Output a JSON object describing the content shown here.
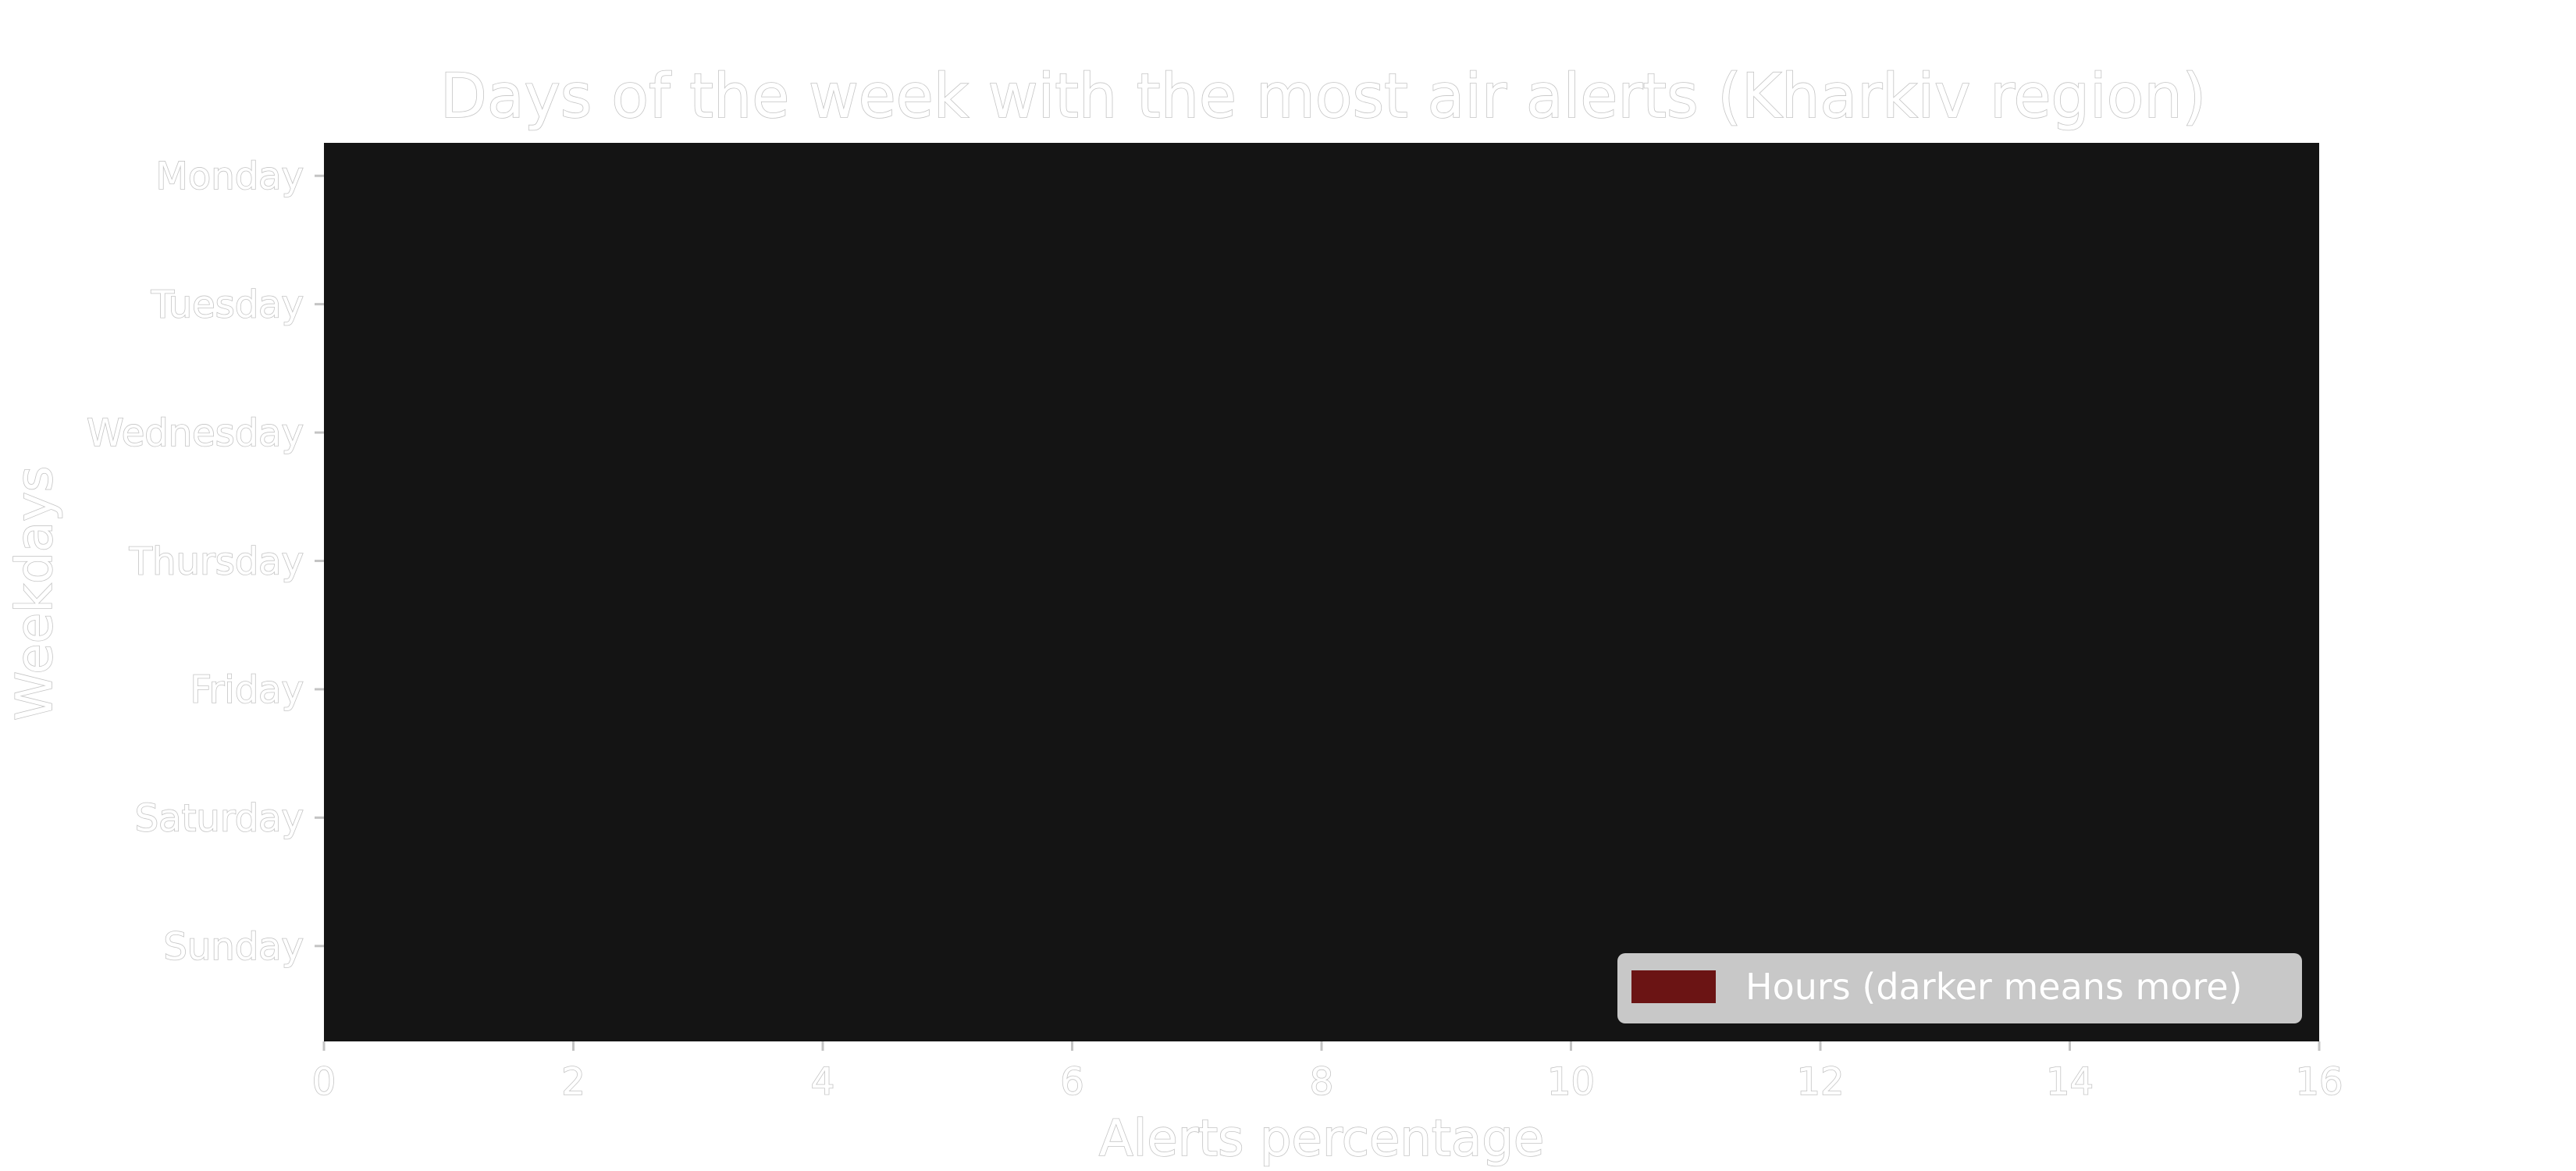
{
  "chart_data": {
    "type": "bar",
    "orientation": "horizontal",
    "title": "Days of the week with the most air alerts (Kharkiv region)",
    "xlabel": "Alerts percentage",
    "ylabel": "Weekdays",
    "categories": [
      "Monday",
      "Tuesday",
      "Wednesday",
      "Thursday",
      "Friday",
      "Saturday",
      "Sunday"
    ],
    "xlim": [
      0,
      16
    ],
    "x_ticks": [
      0,
      2,
      4,
      6,
      8,
      10,
      12,
      14,
      16
    ],
    "grid": false,
    "legend": {
      "position": "bottom-right",
      "entries": [
        {
          "label": "Hours (darker means more)",
          "color": "#6b1414"
        }
      ]
    },
    "colors": {
      "plot_background": "#141414",
      "page_background": "#ffffff",
      "text_fill": "#ffffff",
      "text_outline": "#c4c4c4",
      "legend_background": "#c8c8c8"
    }
  }
}
